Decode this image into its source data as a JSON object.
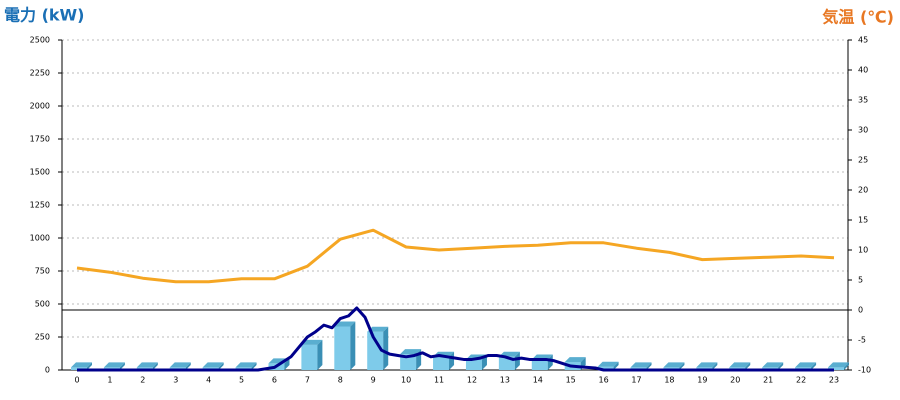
{
  "chart_data": {
    "type": "bar",
    "title_left": "電力 (kW)",
    "title_right": "気温 (℃)",
    "categories": [
      "0",
      "1",
      "2",
      "3",
      "4",
      "5",
      "6",
      "7",
      "8",
      "9",
      "10",
      "11",
      "12",
      "13",
      "14",
      "15",
      "16",
      "17",
      "18",
      "19",
      "20",
      "21",
      "22",
      "23"
    ],
    "ylim": [
      0,
      2500
    ],
    "yticks": [
      0,
      250,
      500,
      750,
      1000,
      1250,
      1500,
      1750,
      2000,
      2250,
      2500
    ],
    "y2lim": [
      -10,
      45
    ],
    "y2ticks": [
      -10,
      -5,
      0,
      5,
      10,
      15,
      20,
      25,
      30,
      35,
      40,
      45
    ],
    "y2_baseline": 0,
    "grid": true,
    "series": [
      {
        "type": "bar",
        "color": "#7ecbea",
        "values": [
          20,
          20,
          20,
          20,
          20,
          20,
          50,
          190,
          330,
          290,
          120,
          100,
          80,
          100,
          80,
          60,
          25,
          20,
          20,
          20,
          20,
          20,
          20,
          20
        ]
      },
      {
        "type": "line",
        "color": "#00008b",
        "x": [
          0,
          1,
          2,
          3,
          4,
          5,
          5.5,
          6,
          6.5,
          7,
          7.25,
          7.5,
          7.75,
          8,
          8.25,
          8.5,
          8.75,
          9,
          9.25,
          9.5,
          9.75,
          10,
          10.25,
          10.5,
          10.75,
          11,
          11.25,
          11.5,
          11.75,
          12,
          12.25,
          12.5,
          12.75,
          13,
          13.25,
          13.5,
          13.75,
          14,
          14.25,
          14.5,
          14.75,
          15,
          15.25,
          15.5,
          15.75,
          16,
          17,
          18,
          19,
          20,
          21,
          22,
          23
        ],
        "values": [
          0,
          0,
          0,
          0,
          0,
          0,
          0,
          20,
          100,
          250,
          290,
          340,
          320,
          390,
          410,
          470,
          400,
          250,
          150,
          120,
          110,
          100,
          110,
          130,
          100,
          110,
          100,
          90,
          80,
          80,
          90,
          110,
          110,
          100,
          80,
          90,
          80,
          80,
          80,
          70,
          50,
          30,
          25,
          20,
          15,
          0,
          0,
          0,
          0,
          0,
          0,
          0,
          0
        ]
      },
      {
        "type": "line",
        "axis": "y2",
        "color": "#f5a623",
        "values": [
          7,
          6.3,
          5.3,
          4.7,
          4.7,
          5.2,
          5.2,
          7.3,
          11.8,
          13.3,
          10.5,
          10,
          10.3,
          10.6,
          10.8,
          11.2,
          11.2,
          10.3,
          9.6,
          8.4,
          8.6,
          8.8,
          9,
          8.7
        ]
      }
    ]
  }
}
